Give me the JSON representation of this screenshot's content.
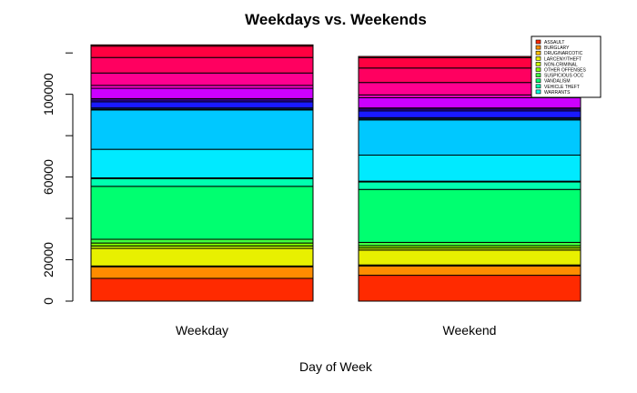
{
  "chart_data": {
    "type": "bar",
    "stacked": true,
    "title": "Weekdays vs. Weekends",
    "xlabel": "Day of Week",
    "ylabel": "",
    "categories": [
      "Weekday",
      "Weekend"
    ],
    "ylim": [
      0,
      128000
    ],
    "yticks": [
      0,
      20000,
      60000,
      100000
    ],
    "ytick_labels": [
      "0",
      "20000",
      "60000",
      "100000"
    ],
    "legend_position": "top-right",
    "series": [
      {
        "name": "ASSAULT",
        "color": "#ff2a00",
        "values": [
          11000,
          12500
        ]
      },
      {
        "name": "BURGLARY",
        "color": "#ff8c00",
        "values": [
          5600,
          4500
        ]
      },
      {
        "name": "DRUG/NARCOTIC",
        "color": "#ffc000",
        "values": [
          400,
          500
        ]
      },
      {
        "name": "LARCENY/THEFT",
        "color": "#e8f000",
        "values": [
          8500,
          7200
        ]
      },
      {
        "name": "NON-CRIMINAL",
        "color": "#c8ff00",
        "values": [
          1200,
          1000
        ]
      },
      {
        "name": "OTHER OFFENSES",
        "color": "#80ff00",
        "values": [
          1400,
          1100
        ]
      },
      {
        "name": "SUSPICIOUS OCC",
        "color": "#40ff40",
        "values": [
          1800,
          1600
        ]
      },
      {
        "name": "VANDALISM",
        "color": "#00ff70",
        "values": [
          25600,
          25600
        ]
      },
      {
        "name": "VEHICLE THEFT",
        "color": "#00ffb0",
        "values": [
          3700,
          3600
        ]
      },
      {
        "name": "WARRANTS",
        "color": "#00ffe0",
        "values": [
          400,
          400
        ]
      }
    ],
    "extra_segments": [
      {
        "color": "#00eaff",
        "values": [
          13800,
          12600
        ]
      },
      {
        "color": "#00c8ff",
        "values": [
          19000,
          17000
        ]
      },
      {
        "color": "#0096ff",
        "values": [
          400,
          500
        ]
      },
      {
        "color": "#0064ff",
        "values": [
          600,
          600
        ]
      },
      {
        "color": "#1a1aff",
        "values": [
          3000,
          3300
        ]
      },
      {
        "color": "#4000ff",
        "values": [
          800,
          800
        ]
      },
      {
        "color": "#8000ff",
        "values": [
          700,
          600
        ]
      },
      {
        "color": "#cc00ff",
        "values": [
          5000,
          5000
        ]
      },
      {
        "color": "#ff00cc",
        "values": [
          1400,
          1300
        ]
      },
      {
        "color": "#ff0090",
        "values": [
          6000,
          6000
        ]
      },
      {
        "color": "#ff0060",
        "values": [
          7500,
          7000
        ]
      },
      {
        "color": "#ff0040",
        "values": [
          5500,
          5000
        ]
      },
      {
        "color": "#ff0020",
        "values": [
          600,
          600
        ]
      }
    ]
  }
}
